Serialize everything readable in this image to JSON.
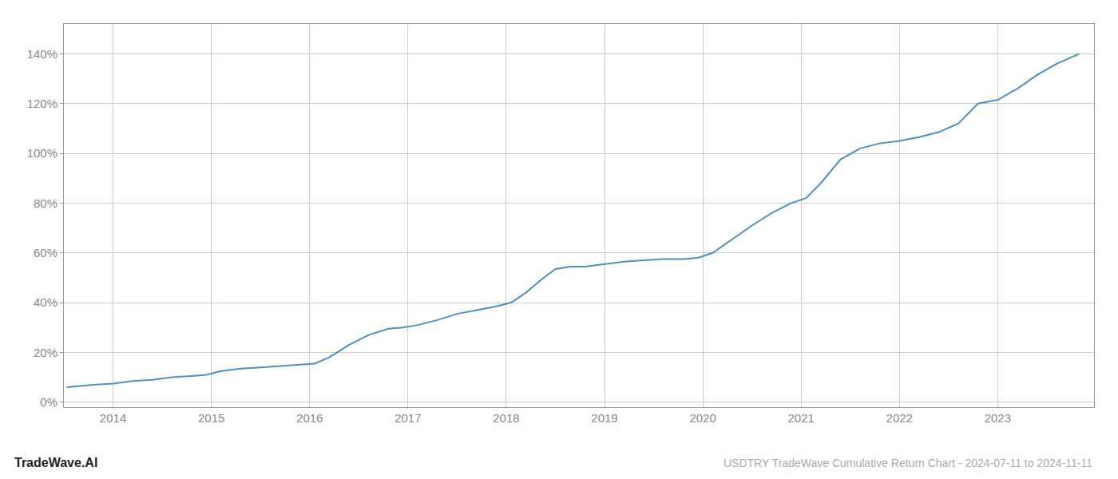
{
  "chart_data": {
    "type": "line",
    "title": "USDTRY TradeWave Cumulative Return Chart - 2024-07-11 to 2024-11-11",
    "annotations": [
      "TradeWave.AI"
    ],
    "x": [
      2013.53,
      2013.65,
      2013.8,
      2014.0,
      2014.2,
      2014.4,
      2014.6,
      2014.8,
      2014.95,
      2015.1,
      2015.3,
      2015.5,
      2015.7,
      2015.9,
      2016.05,
      2016.2,
      2016.4,
      2016.6,
      2016.8,
      2016.95,
      2017.1,
      2017.3,
      2017.5,
      2017.7,
      2017.9,
      2018.05,
      2018.2,
      2018.35,
      2018.5,
      2018.65,
      2018.8,
      2019.0,
      2019.2,
      2019.4,
      2019.6,
      2019.8,
      2019.95,
      2020.1,
      2020.3,
      2020.5,
      2020.7,
      2020.9,
      2021.05,
      2021.2,
      2021.4,
      2021.6,
      2021.8,
      2022.0,
      2022.2,
      2022.4,
      2022.6,
      2022.8,
      2023.0,
      2023.2,
      2023.4,
      2023.6,
      2023.83
    ],
    "values": [
      0.06,
      0.065,
      0.07,
      0.075,
      0.085,
      0.09,
      0.1,
      0.105,
      0.11,
      0.125,
      0.135,
      0.14,
      0.145,
      0.15,
      0.155,
      0.18,
      0.23,
      0.27,
      0.295,
      0.3,
      0.31,
      0.33,
      0.355,
      0.37,
      0.385,
      0.4,
      0.44,
      0.49,
      0.535,
      0.545,
      0.545,
      0.555,
      0.565,
      0.57,
      0.575,
      0.575,
      0.58,
      0.6,
      0.655,
      0.71,
      0.76,
      0.8,
      0.82,
      0.88,
      0.975,
      1.02,
      1.04,
      1.05,
      1.065,
      1.085,
      1.12,
      1.2,
      1.215,
      1.26,
      1.315,
      1.36,
      1.4
    ],
    "color": "#4a90c4",
    "xlim": [
      2013.5,
      2023.98
    ],
    "xticks": [
      2014,
      2015,
      2016,
      2017,
      2018,
      2019,
      2020,
      2021,
      2022,
      2023
    ],
    "ylim": [
      -0.02,
      1.52
    ],
    "yticks": [
      {
        "value": 0.0,
        "label": "0%"
      },
      {
        "value": 0.2,
        "label": "20%"
      },
      {
        "value": 0.4,
        "label": "40%"
      },
      {
        "value": 0.6,
        "label": "60%"
      },
      {
        "value": 0.8,
        "label": "80%"
      },
      {
        "value": 1.0,
        "label": "100%"
      },
      {
        "value": 1.2,
        "label": "120%"
      },
      {
        "value": 1.4,
        "label": "140%"
      }
    ],
    "grid": true
  }
}
